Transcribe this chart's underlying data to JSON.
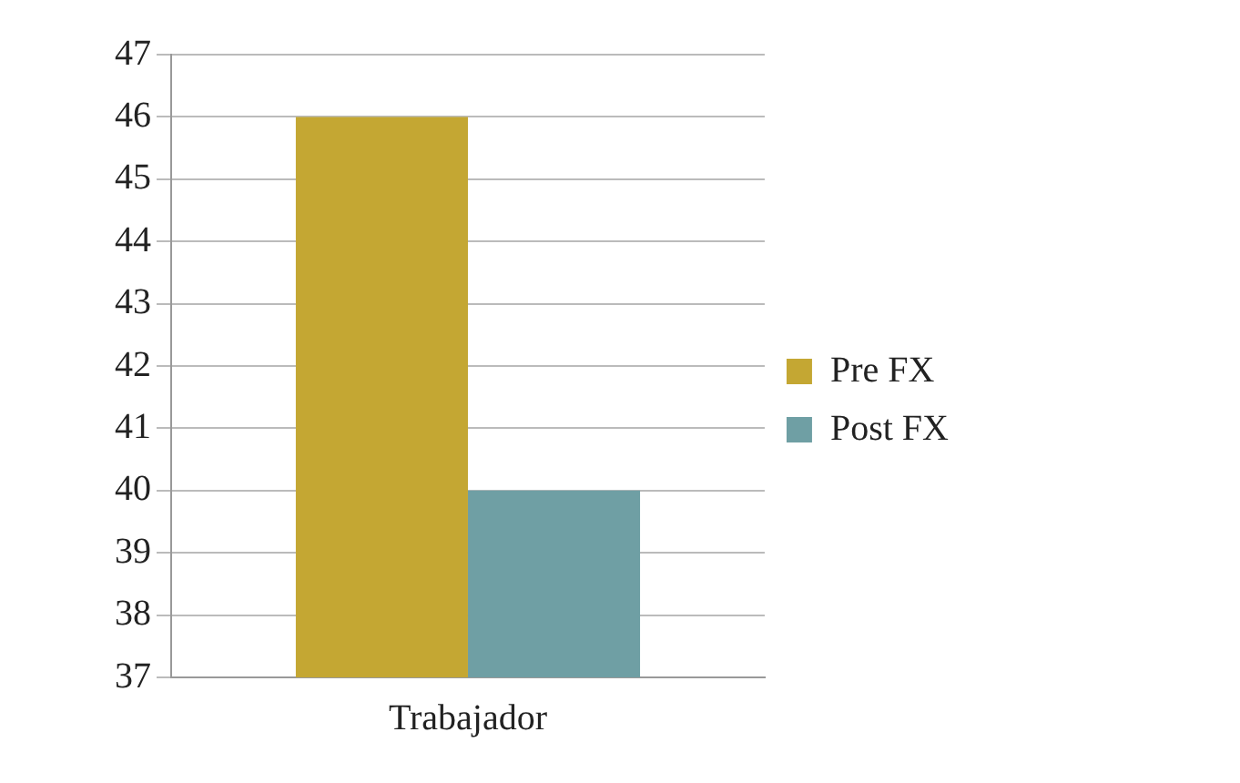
{
  "chart_data": {
    "type": "bar",
    "categories": [
      "Trabajador"
    ],
    "series": [
      {
        "name": "Pre FX",
        "color": "#c4a733",
        "values": [
          46
        ]
      },
      {
        "name": "Post FX",
        "color": "#6f9fa4",
        "values": [
          40
        ]
      }
    ],
    "ylim": [
      37,
      47
    ],
    "yticks": [
      37,
      38,
      39,
      40,
      41,
      42,
      43,
      44,
      45,
      46,
      47
    ],
    "grid": "y",
    "legend": "right"
  }
}
